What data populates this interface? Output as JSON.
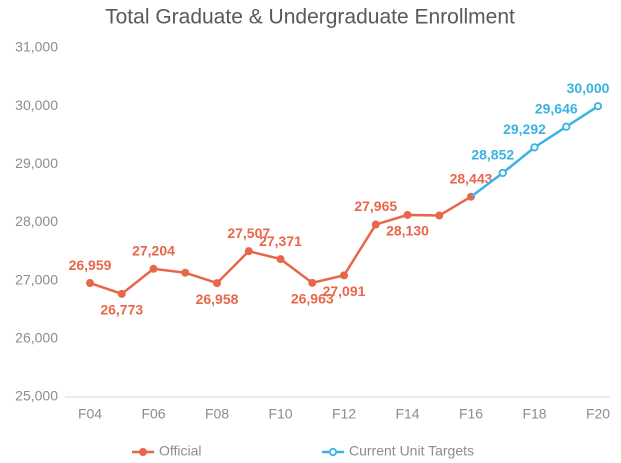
{
  "chart_data": {
    "type": "line",
    "title": "Total Graduate & Undergraduate Enrollment",
    "categories": [
      "F04",
      null,
      "F06",
      null,
      "F08",
      null,
      "F10",
      null,
      "F12",
      null,
      "F14",
      null,
      "F16",
      null,
      "F18",
      null,
      "F20"
    ],
    "series": [
      {
        "name": "Official",
        "color": "#e8664a",
        "values": [
          26959,
          26773,
          27204,
          27137,
          26958,
          27507,
          27371,
          26963,
          27091,
          27965,
          28130,
          28120,
          28443,
          null,
          null,
          null,
          null
        ],
        "value_labels": [
          "26,959",
          "26,773",
          "27,204",
          null,
          "26,958",
          "27,507",
          "27,371",
          "26,963",
          "27,091",
          "27,965",
          "28,130",
          null,
          "28,443",
          null,
          null,
          null,
          null
        ]
      },
      {
        "name": "Current Unit Targets",
        "color": "#3bb3e2",
        "values": [
          null,
          null,
          null,
          null,
          null,
          null,
          null,
          null,
          null,
          null,
          null,
          null,
          28443,
          28852,
          29292,
          29646,
          30000
        ],
        "value_labels": [
          null,
          null,
          null,
          null,
          null,
          null,
          null,
          null,
          null,
          null,
          null,
          null,
          null,
          "28,852",
          "29,292",
          "29,646",
          "30,000"
        ]
      }
    ],
    "ylim": [
      25000,
      31000
    ],
    "yticks": [
      {
        "value": 25000,
        "label": "25,000"
      },
      {
        "value": 26000,
        "label": "26,000"
      },
      {
        "value": 27000,
        "label": "27,000"
      },
      {
        "value": 28000,
        "label": "28,000"
      },
      {
        "value": 29000,
        "label": "29,000"
      },
      {
        "value": 30000,
        "label": "30,000"
      },
      {
        "value": 31000,
        "label": "31,000"
      }
    ],
    "legend": "bottom"
  }
}
